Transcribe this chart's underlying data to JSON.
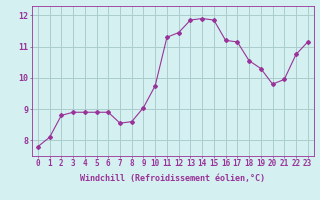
{
  "x": [
    0,
    1,
    2,
    3,
    4,
    5,
    6,
    7,
    8,
    9,
    10,
    11,
    12,
    13,
    14,
    15,
    16,
    17,
    18,
    19,
    20,
    21,
    22,
    23
  ],
  "y": [
    7.8,
    8.1,
    8.8,
    8.9,
    8.9,
    8.9,
    8.9,
    8.55,
    8.6,
    9.05,
    9.75,
    11.3,
    11.45,
    11.85,
    11.9,
    11.85,
    11.2,
    11.15,
    10.55,
    10.3,
    9.8,
    9.95,
    10.75,
    11.15
  ],
  "line_color": "#993399",
  "marker": "D",
  "marker_size": 2,
  "bg_color": "#d4f0f0",
  "grid_color": "#aacccc",
  "ylabel_ticks": [
    8,
    9,
    10,
    11,
    12
  ],
  "xtick_labels": [
    "0",
    "1",
    "2",
    "3",
    "4",
    "5",
    "6",
    "7",
    "8",
    "9",
    "10",
    "11",
    "12",
    "13",
    "14",
    "15",
    "16",
    "17",
    "18",
    "19",
    "20",
    "21",
    "22",
    "23"
  ],
  "ylim": [
    7.5,
    12.3
  ],
  "xlim": [
    -0.5,
    23.5
  ],
  "xlabel": "Windchill (Refroidissement éolien,°C)",
  "xlabel_fontsize": 6.0,
  "tick_fontsize": 5.5,
  "tick_color": "#993399",
  "label_color": "#993399",
  "spine_color": "#993399"
}
